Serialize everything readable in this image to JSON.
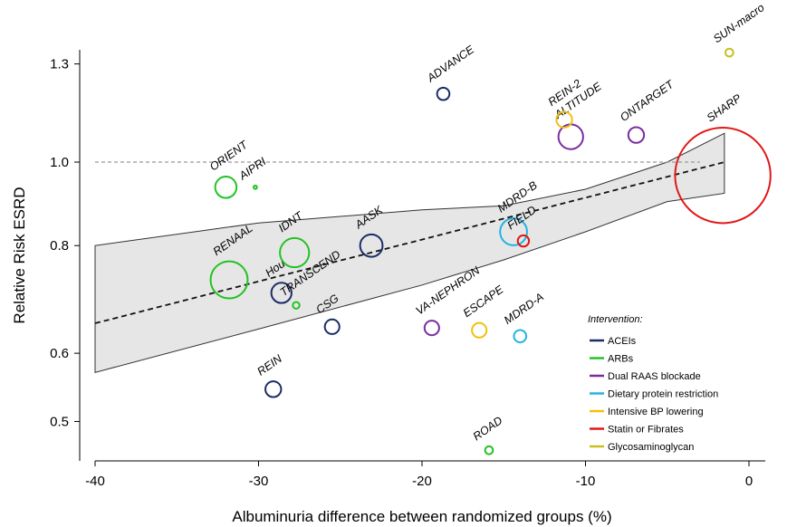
{
  "chart_data": {
    "type": "scatter",
    "xlabel": "Albuminuria difference between randomized groups (%)",
    "ylabel": "Relative Risk ESRD",
    "xlim": [
      -40,
      0
    ],
    "ylim": [
      0.45,
      1.35
    ],
    "y_scale": "log",
    "x_ticks": [
      -40,
      -30,
      -20,
      -10,
      0
    ],
    "y_ticks": [
      0.5,
      0.6,
      0.8,
      1.0,
      1.3
    ],
    "y_tick_labels": [
      "0.5",
      "0.6",
      "0.8",
      "1.0",
      "1.3"
    ],
    "reference_line_y": 1.0,
    "regression": {
      "x": [
        -40,
        -1.5
      ],
      "y": [
        0.65,
        1.0
      ],
      "band_x": [
        -40,
        -30,
        -20,
        -15,
        -10,
        -5,
        -1.5
      ],
      "band_lower": [
        0.57,
        0.64,
        0.72,
        0.77,
        0.83,
        0.9,
        0.92
      ],
      "band_upper": [
        0.8,
        0.85,
        0.88,
        0.89,
        0.93,
        1.0,
        1.08
      ]
    },
    "legend": {
      "title": "Intervention:",
      "position": "bottom-right",
      "entries": [
        {
          "label": "ACEIs",
          "color": "#1c2d66"
        },
        {
          "label": "ARBs",
          "color": "#22c322"
        },
        {
          "label": "Dual RAAS blockade",
          "color": "#7a2d9c"
        },
        {
          "label": "Dietary protein restriction",
          "color": "#22b4e0"
        },
        {
          "label": "Intensive BP lowering",
          "color": "#f0c010"
        },
        {
          "label": "Statin or Fibrates",
          "color": "#e01818"
        },
        {
          "label": "Glycosaminoglycan",
          "color": "#c8c020"
        }
      ]
    },
    "points": [
      {
        "label": "REIN",
        "x": -29.1,
        "y": 0.545,
        "size": 1.4,
        "group": 0
      },
      {
        "label": "CSG",
        "x": -25.5,
        "y": 0.644,
        "size": 1.3,
        "group": 0
      },
      {
        "label": "AASK",
        "x": -23.1,
        "y": 0.8,
        "size": 2.0,
        "group": 0
      },
      {
        "label": "Hou",
        "x": -28.6,
        "y": 0.705,
        "size": 1.8,
        "group": 0
      },
      {
        "label": "ADVANCE",
        "x": -18.7,
        "y": 1.2,
        "size": 1.1,
        "group": 0
      },
      {
        "label": "RENAAL",
        "x": -31.8,
        "y": 0.73,
        "size": 3.3,
        "group": 1
      },
      {
        "label": "IDNT",
        "x": -27.8,
        "y": 0.785,
        "size": 2.6,
        "group": 1
      },
      {
        "label": "TRANSCEND",
        "x": -27.7,
        "y": 0.682,
        "size": 0.6,
        "group": 1
      },
      {
        "label": "ORIENT",
        "x": -32.0,
        "y": 0.935,
        "size": 1.9,
        "group": 1
      },
      {
        "label": "AIPRI",
        "x": -30.2,
        "y": 0.935,
        "size": 0.3,
        "group": 1
      },
      {
        "label": "ROAD",
        "x": -15.9,
        "y": 0.463,
        "size": 0.7,
        "group": 1
      },
      {
        "label": "VA-NEPHRON",
        "x": -19.4,
        "y": 0.642,
        "size": 1.3,
        "group": 2
      },
      {
        "label": "ALTITUDE",
        "x": -10.9,
        "y": 1.07,
        "size": 2.2,
        "group": 2
      },
      {
        "label": "ONTARGET",
        "x": -6.9,
        "y": 1.075,
        "size": 1.4,
        "group": 2
      },
      {
        "label": "MDRD-B",
        "x": -14.4,
        "y": 0.83,
        "size": 2.4,
        "group": 3
      },
      {
        "label": "MDRD-A",
        "x": -14.0,
        "y": 0.628,
        "size": 1.1,
        "group": 3
      },
      {
        "label": "REIN-2",
        "x": -11.3,
        "y": 1.12,
        "size": 1.4,
        "group": 4
      },
      {
        "label": "ESCAPE",
        "x": -16.5,
        "y": 0.638,
        "size": 1.3,
        "group": 4
      },
      {
        "label": "FIELD",
        "x": -13.8,
        "y": 0.81,
        "size": 1.0,
        "group": 5
      },
      {
        "label": "SHARP",
        "x": -1.6,
        "y": 0.965,
        "size": 8.5,
        "group": 5
      },
      {
        "label": "SUN-macro",
        "x": -1.2,
        "y": 1.34,
        "size": 0.7,
        "group": 6
      }
    ]
  }
}
